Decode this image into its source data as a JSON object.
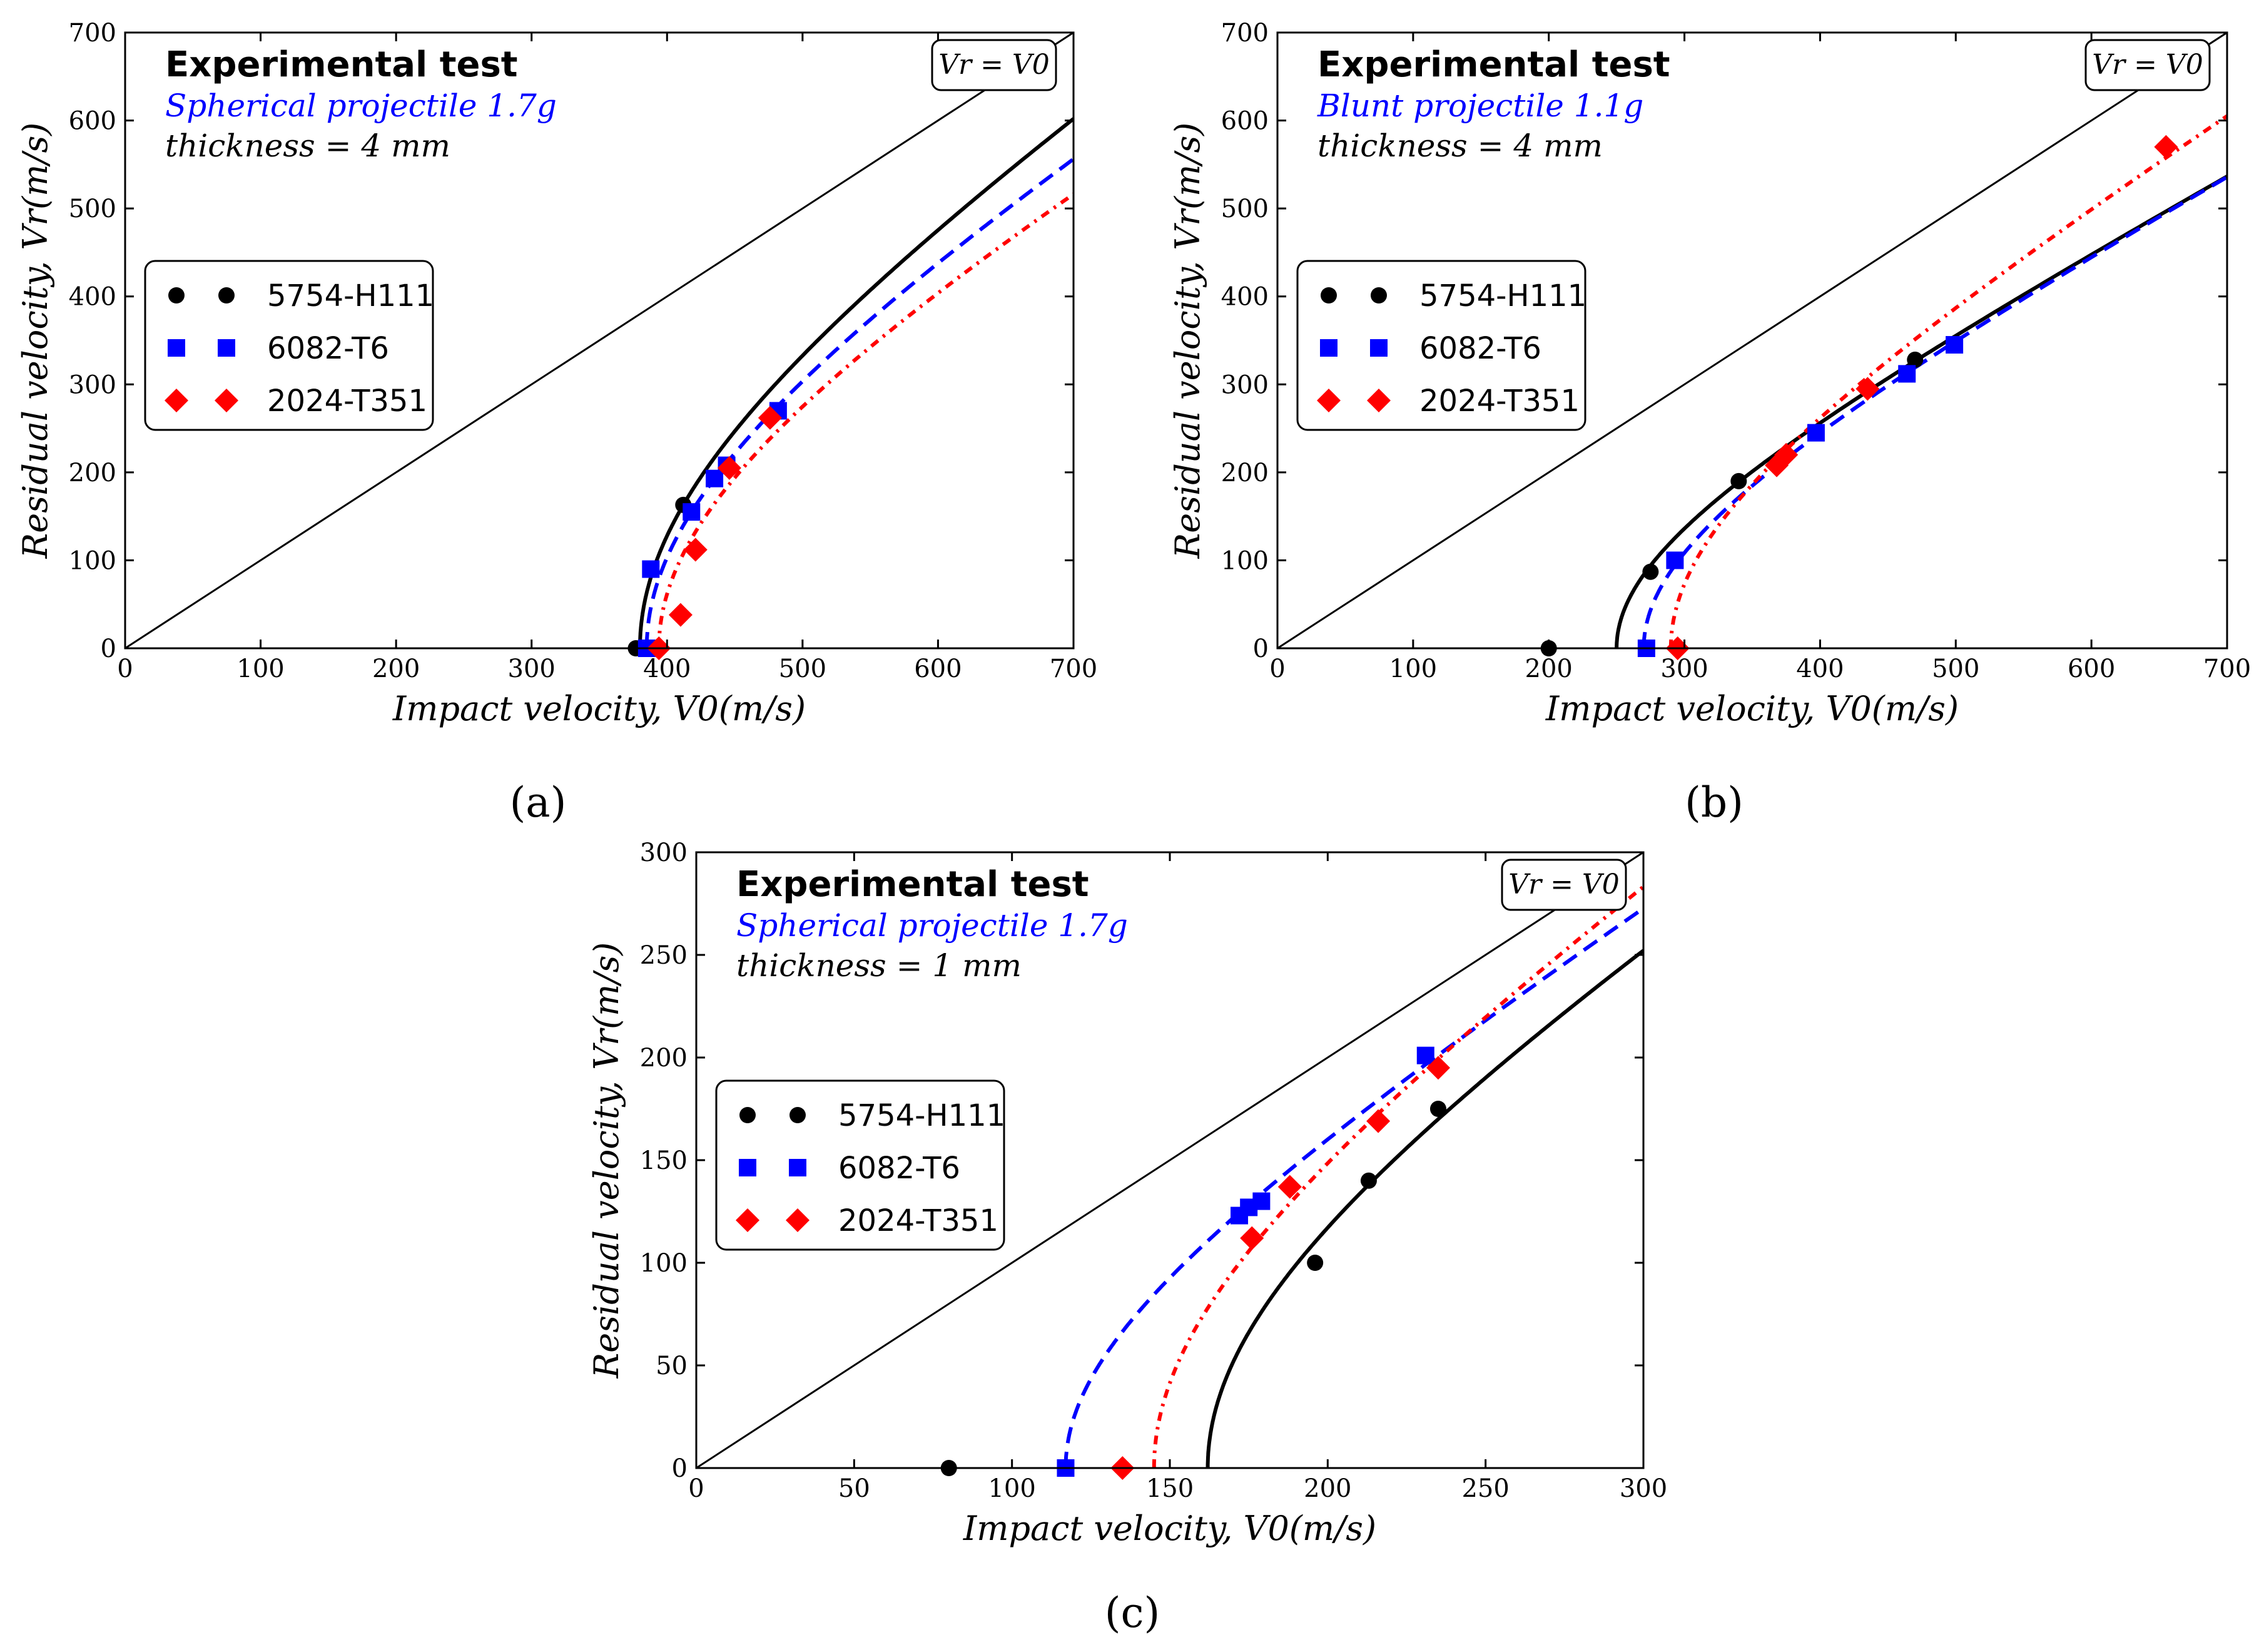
{
  "chart_data": [
    {
      "type": "scatter",
      "panel_label": "(a)",
      "title": "Experimental test",
      "subtitle": "Spherical projectile 1.7g",
      "thickness_note": "thickness = 4 mm",
      "annotation": "Vr = V0",
      "xlabel": "Impact velocity, V0(m/s)",
      "ylabel": "Residual velocity, Vr(m/s)",
      "xlim": [
        0,
        700
      ],
      "ylim": [
        0,
        700
      ],
      "xticks": [
        0,
        100,
        200,
        300,
        400,
        500,
        600,
        700
      ],
      "yticks": [
        0,
        100,
        200,
        300,
        400,
        500,
        600,
        700
      ],
      "legend": [
        "5754-H111",
        "6082-T6",
        "2024-T351"
      ],
      "series": [
        {
          "name": "5754-H111",
          "color": "#000000",
          "marker": "circle",
          "line": "solid",
          "vbl": 380,
          "x": [
            377,
            412
          ],
          "y": [
            0,
            163
          ]
        },
        {
          "name": "6082-T6",
          "color": "#0000ff",
          "marker": "square",
          "line": "dashed",
          "vbl": 385,
          "x": [
            385,
            388,
            418,
            435,
            444,
            482
          ],
          "y": [
            0,
            90,
            155,
            193,
            208,
            270
          ]
        },
        {
          "name": "2024-T351",
          "color": "#ff0000",
          "marker": "diamond",
          "line": "dashdot",
          "vbl": 394,
          "x": [
            394,
            410,
            421,
            446,
            476
          ],
          "y": [
            0,
            38,
            112,
            205,
            262
          ]
        }
      ]
    },
    {
      "type": "scatter",
      "panel_label": "(b)",
      "title": "Experimental test",
      "subtitle": "Blunt projectile 1.1g",
      "thickness_note": "thickness = 4 mm",
      "annotation": "Vr = V0",
      "xlabel": "Impact velocity, V0(m/s)",
      "ylabel": "Residual velocity, Vr(m/s)",
      "xlim": [
        0,
        700
      ],
      "ylim": [
        0,
        700
      ],
      "xticks": [
        0,
        100,
        200,
        300,
        400,
        500,
        600,
        700
      ],
      "yticks": [
        0,
        100,
        200,
        300,
        400,
        500,
        600,
        700
      ],
      "legend": [
        "5754-H111",
        "6082-T6",
        "2024-T351"
      ],
      "series": [
        {
          "name": "5754-H111",
          "color": "#000000",
          "marker": "circle",
          "line": "solid",
          "vbl": 250,
          "x": [
            200,
            275,
            340,
            470
          ],
          "y": [
            0,
            87,
            190,
            328
          ]
        },
        {
          "name": "6082-T6",
          "color": "#0000ff",
          "marker": "square",
          "line": "dashed",
          "vbl": 270,
          "x": [
            272,
            293,
            397,
            464,
            499
          ],
          "y": [
            0,
            100,
            245,
            312,
            345
          ]
        },
        {
          "name": "2024-T351",
          "color": "#ff0000",
          "marker": "diamond",
          "line": "dashdot",
          "vbl": 290,
          "x": [
            295,
            368,
            375,
            435,
            655
          ],
          "y": [
            0,
            208,
            220,
            295,
            570
          ]
        }
      ]
    },
    {
      "type": "scatter",
      "panel_label": "(c)",
      "title": "Experimental test",
      "subtitle": "Spherical projectile 1.7g",
      "thickness_note": "thickness = 1 mm",
      "annotation": "Vr = V0",
      "xlabel": "Impact velocity, V0(m/s)",
      "ylabel": "Residual velocity, Vr(m/s)",
      "xlim": [
        0,
        300
      ],
      "ylim": [
        0,
        300
      ],
      "xticks": [
        0,
        50,
        100,
        150,
        200,
        250,
        300
      ],
      "yticks": [
        0,
        50,
        100,
        150,
        200,
        250,
        300
      ],
      "legend": [
        "5754-H111",
        "6082-T6",
        "2024-T351"
      ],
      "series": [
        {
          "name": "5754-H111",
          "color": "#000000",
          "marker": "circle",
          "line": "solid",
          "vbl": 162,
          "x": [
            80,
            196,
            213,
            235
          ],
          "y": [
            0,
            100,
            140,
            175
          ]
        },
        {
          "name": "6082-T6",
          "color": "#0000ff",
          "marker": "square",
          "line": "dashed",
          "vbl": 117,
          "x": [
            117,
            172,
            175,
            179,
            231
          ],
          "y": [
            0,
            123,
            127,
            130,
            201
          ]
        },
        {
          "name": "2024-T351",
          "color": "#ff0000",
          "marker": "diamond",
          "line": "dashdot",
          "vbl": 145,
          "x": [
            135,
            176,
            188,
            216,
            235
          ],
          "y": [
            0,
            112,
            137,
            169,
            195
          ]
        }
      ]
    }
  ]
}
